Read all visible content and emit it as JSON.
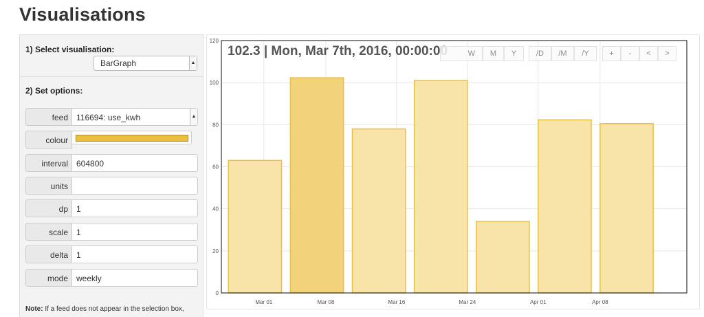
{
  "page": {
    "title": "Visualisations"
  },
  "panel": {
    "section1_title": "1) Select visualisation:",
    "visualisation": "BarGraph",
    "section2_title": "2) Set options:",
    "options": [
      {
        "label": "feed",
        "value": "116694: use_kwh",
        "kind": "select"
      },
      {
        "label": "colour",
        "value": "",
        "kind": "colour"
      },
      {
        "label": "interval",
        "value": "604800",
        "kind": "text"
      },
      {
        "label": "units",
        "value": "",
        "kind": "text"
      },
      {
        "label": "dp",
        "value": "1",
        "kind": "text"
      },
      {
        "label": "scale",
        "value": "1",
        "kind": "text"
      },
      {
        "label": "delta",
        "value": "1",
        "kind": "text"
      },
      {
        "label": "mode",
        "value": "weekly",
        "kind": "text"
      }
    ],
    "note_label": "Note:",
    "note_text": " If a feed does not appear in the selection box,"
  },
  "chart_toolbar": {
    "readout": "102.3 | Mon, Mar 7th, 2016, 00:00:00",
    "buttons": [
      "W",
      "M",
      "Y",
      "/D",
      "/M",
      "/Y",
      "+",
      "-",
      "<",
      ">"
    ]
  },
  "colors": {
    "bar_fill": "#f8e3a8",
    "bar_stroke": "#e8c142",
    "bar_highlight_fill": "#f2d27a",
    "swatch": "#e8c142"
  },
  "chart_data": {
    "type": "bar",
    "x": [
      "2016-02-29",
      "2016-03-07",
      "2016-03-14",
      "2016-03-21",
      "2016-03-28",
      "2016-04-04",
      "2016-04-11"
    ],
    "values": [
      63,
      102.3,
      78,
      101,
      34,
      82.3,
      80.5
    ],
    "highlighted_index": 1,
    "x_ticks": [
      "Mar 01",
      "Mar 08",
      "Mar 16",
      "Mar 24",
      "Apr 01",
      "Apr 08"
    ],
    "x_tick_dates": [
      "2016-03-01",
      "2016-03-08",
      "2016-03-16",
      "2016-03-24",
      "2016-04-01",
      "2016-04-08"
    ],
    "y_ticks": [
      0,
      20,
      40,
      60,
      80,
      100,
      120
    ],
    "ylim": [
      0,
      120
    ],
    "grid": true
  }
}
